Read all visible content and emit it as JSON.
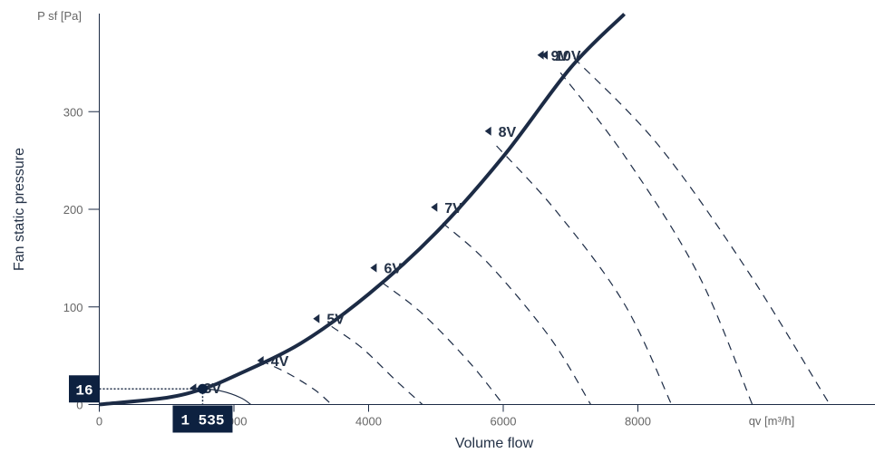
{
  "chart_data": {
    "type": "line",
    "ylabel": "Fan static pressure",
    "xlabel": "Volume flow",
    "y_unit_label": "P sf [Pa]",
    "x_unit_label": "qv [m³/h]",
    "xlim": [
      0,
      11500
    ],
    "ylim": [
      0,
      400
    ],
    "x_ticks": [
      {
        "value": 0,
        "label": "0"
      },
      {
        "value": 2000,
        "label": "2000"
      },
      {
        "value": 4000,
        "label": "4000"
      },
      {
        "value": 6000,
        "label": "6000"
      },
      {
        "value": 8000,
        "label": "8000"
      }
    ],
    "y_ticks": [
      {
        "value": 0,
        "label": "0"
      },
      {
        "value": 100,
        "label": "100"
      },
      {
        "value": 200,
        "label": "200"
      },
      {
        "value": 300,
        "label": "300"
      }
    ],
    "series": [
      {
        "style": "system-curve",
        "color": "#1c2b45",
        "x": [
          0,
          1000,
          1535,
          2000,
          3000,
          4000,
          5000,
          6000,
          7000,
          7800
        ],
        "y": [
          0,
          7,
          16,
          29,
          63,
          113,
          176,
          254,
          345,
          400
        ]
      },
      {
        "label": "3V",
        "style": "fan-curve",
        "color": "#1c2b45",
        "x": [
          1420,
          1800,
          2100,
          2250
        ],
        "y": [
          17,
          14,
          7,
          0
        ]
      },
      {
        "label": "4V",
        "style": "fan-curve",
        "color": "#1c2b45",
        "x": [
          2400,
          2800,
          3200,
          3450
        ],
        "y": [
          45,
          32,
          15,
          0
        ]
      },
      {
        "label": "5V",
        "style": "fan-curve",
        "color": "#1c2b45",
        "x": [
          3450,
          3900,
          4400,
          4800
        ],
        "y": [
          80,
          58,
          25,
          0
        ]
      },
      {
        "label": "6V",
        "style": "fan-curve",
        "color": "#1c2b45",
        "x": [
          4200,
          4800,
          5500,
          6000
        ],
        "y": [
          125,
          93,
          43,
          0
        ]
      },
      {
        "label": "7V",
        "style": "fan-curve",
        "color": "#1c2b45",
        "x": [
          5100,
          5800,
          6700,
          7300
        ],
        "y": [
          186,
          143,
          68,
          0
        ]
      },
      {
        "label": "8V",
        "style": "fan-curve",
        "color": "#1c2b45",
        "x": [
          5900,
          6800,
          7800,
          8500
        ],
        "y": [
          265,
          197,
          103,
          0
        ]
      },
      {
        "label": "9V",
        "style": "fan-curve",
        "color": "#1c2b45",
        "x": [
          6850,
          7800,
          8900,
          9700
        ],
        "y": [
          340,
          255,
          133,
          0
        ]
      },
      {
        "label": "10V",
        "style": "fan-curve",
        "color": "#1c2b45",
        "x": [
          7050,
          8300,
          9600,
          10850
        ],
        "y": [
          355,
          266,
          140,
          0
        ]
      }
    ],
    "markers": [
      {
        "label": "3V",
        "x": 1400,
        "y": 17
      },
      {
        "label": "4V",
        "x": 2400,
        "y": 45
      },
      {
        "label": "5V",
        "x": 3230,
        "y": 88
      },
      {
        "label": "6V",
        "x": 4080,
        "y": 140
      },
      {
        "label": "7V",
        "x": 4980,
        "y": 202
      },
      {
        "label": "8V",
        "x": 5780,
        "y": 280
      },
      {
        "label": "9V",
        "x": 6560,
        "y": 358
      },
      {
        "label": "10V",
        "x": 6620,
        "y": 358
      }
    ],
    "operating_point": {
      "x": 1535,
      "y": 16,
      "x_label": "1 535",
      "y_label": "16",
      "color": "#0d2140"
    },
    "grid": false
  }
}
